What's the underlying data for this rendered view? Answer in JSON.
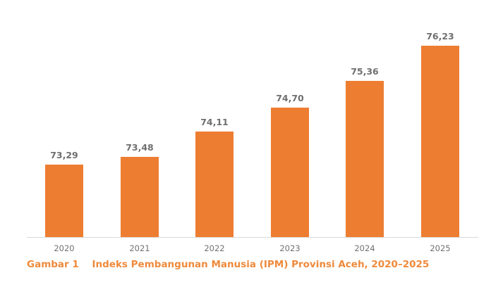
{
  "chart_data": {
    "type": "bar",
    "title": "Indeks Pembangunan Manusia (IPM) Provinsi Aceh, 2020–2025",
    "figure_label": "Gambar 1",
    "categories": [
      "2020",
      "2021",
      "2022",
      "2023",
      "2024",
      "2025"
    ],
    "values": [
      73.29,
      73.48,
      74.11,
      74.7,
      75.36,
      76.23
    ],
    "value_labels": [
      "73,29",
      "73,48",
      "74,11",
      "74,70",
      "75,36",
      "76,23"
    ],
    "xlabel": "",
    "ylabel": "",
    "grid": false,
    "legend": "none",
    "bar_color": "#ed7d31"
  },
  "caption": {
    "label": "Gambar 1",
    "text": "Indeks Pembangunan Manusia (IPM) Provinsi Aceh, 2020–2025"
  }
}
